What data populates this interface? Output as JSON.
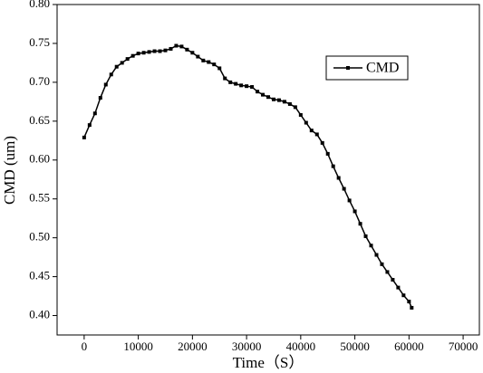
{
  "chart_data": {
    "type": "line",
    "xlabel": "Time（S）",
    "ylabel": "CMD (um)",
    "x": [
      0,
      1000,
      2000,
      3000,
      4000,
      5000,
      6000,
      7000,
      8000,
      9000,
      10000,
      11000,
      12000,
      13000,
      14000,
      15000,
      16000,
      17000,
      18000,
      19000,
      20000,
      21000,
      22000,
      23000,
      24000,
      25000,
      26000,
      27000,
      28000,
      29000,
      30000,
      31000,
      32000,
      33000,
      34000,
      35000,
      36000,
      37000,
      38000,
      39000,
      40000,
      41000,
      42000,
      43000,
      44000,
      45000,
      46000,
      47000,
      48000,
      49000,
      50000,
      51000,
      52000,
      53000,
      54000,
      55000,
      56000,
      57000,
      58000,
      59000,
      60000,
      60500
    ],
    "series": [
      {
        "name": "CMD",
        "color": "#000000",
        "values": [
          0.629,
          0.645,
          0.66,
          0.68,
          0.697,
          0.71,
          0.72,
          0.725,
          0.73,
          0.734,
          0.737,
          0.738,
          0.739,
          0.74,
          0.74,
          0.741,
          0.743,
          0.747,
          0.746,
          0.742,
          0.738,
          0.733,
          0.728,
          0.726,
          0.723,
          0.718,
          0.705,
          0.7,
          0.698,
          0.696,
          0.695,
          0.694,
          0.688,
          0.684,
          0.681,
          0.678,
          0.677,
          0.675,
          0.672,
          0.668,
          0.658,
          0.648,
          0.638,
          0.633,
          0.622,
          0.608,
          0.592,
          0.577,
          0.563,
          0.548,
          0.534,
          0.518,
          0.502,
          0.49,
          0.478,
          0.466,
          0.456,
          0.446,
          0.436,
          0.426,
          0.418,
          0.41
        ]
      }
    ],
    "xlim": [
      -5000,
      73000
    ],
    "ylim": [
      0.375,
      0.8
    ],
    "xticks": [
      0,
      10000,
      20000,
      30000,
      40000,
      50000,
      60000,
      70000
    ],
    "yticks": [
      {
        "value": 0.4,
        "label": "0.40"
      },
      0.45,
      {
        "value": 0.5,
        "label": "0.50"
      },
      0.55,
      {
        "value": 0.6,
        "label": "0.60"
      },
      0.65,
      {
        "value": 0.7,
        "label": "0.70"
      },
      0.75,
      {
        "value": 0.8,
        "label": "0.80"
      }
    ],
    "legend": "upper right",
    "marker": "square"
  }
}
